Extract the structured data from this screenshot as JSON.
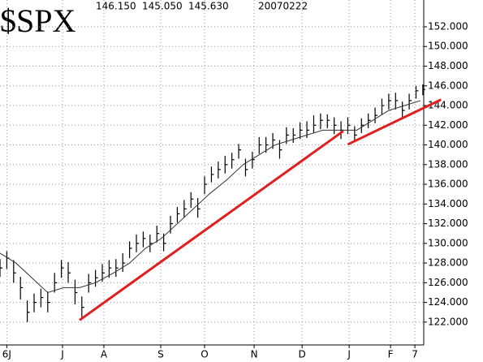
{
  "chart_data": {
    "type": "ohlc",
    "title": "$SPX",
    "quote": [
      "146.150",
      "145.050",
      "145.630"
    ],
    "date": "20070222",
    "x": [
      0,
      3,
      6,
      9,
      12,
      15,
      18,
      21,
      24,
      27,
      30,
      33,
      36,
      39,
      42,
      45,
      48,
      51,
      54,
      57,
      60,
      63,
      66,
      69,
      72,
      75,
      78,
      81,
      84,
      87,
      90,
      93,
      96,
      99,
      102,
      105,
      108,
      111,
      114,
      117,
      120,
      123,
      126,
      129,
      132,
      135,
      138,
      141,
      144,
      147,
      150,
      153,
      156,
      159,
      162,
      165,
      168,
      171,
      174,
      177,
      180,
      183,
      186
    ],
    "high": [
      128.4,
      129.2,
      128.3,
      126.6,
      124.2,
      124.9,
      125.4,
      125.1,
      127.0,
      128.3,
      128.1,
      126.3,
      124.6,
      126.9,
      127.3,
      127.9,
      128.3,
      128.4,
      129.0,
      130.2,
      130.9,
      131.2,
      130.9,
      131.8,
      131.0,
      132.8,
      133.7,
      134.4,
      135.2,
      134.6,
      136.8,
      137.8,
      138.3,
      138.9,
      139.2,
      140.1,
      138.6,
      139.3,
      140.8,
      140.8,
      141.2,
      140.5,
      141.8,
      141.7,
      142.3,
      142.4,
      143.0,
      143.2,
      143.1,
      142.8,
      142.4,
      142.8,
      141.9,
      142.7,
      143.2,
      143.8,
      144.7,
      145.2,
      145.3,
      144.4,
      145.2,
      146.0,
      146.15
    ],
    "low": [
      126.6,
      127.4,
      126.0,
      124.3,
      122.0,
      123.0,
      123.5,
      123.0,
      125.0,
      126.5,
      126.0,
      123.8,
      122.5,
      125.0,
      125.6,
      126.1,
      126.5,
      126.6,
      127.1,
      128.5,
      129.1,
      129.6,
      129.1,
      130.1,
      129.2,
      131.0,
      132.1,
      132.6,
      133.6,
      132.6,
      135.0,
      136.2,
      136.6,
      137.1,
      137.6,
      138.6,
      136.8,
      137.6,
      139.1,
      139.2,
      139.6,
      138.6,
      140.1,
      140.2,
      140.6,
      140.7,
      141.2,
      141.6,
      141.7,
      141.1,
      140.6,
      141.1,
      140.3,
      141.2,
      141.7,
      142.2,
      143.1,
      143.6,
      143.6,
      142.8,
      143.6,
      144.7,
      145.05
    ],
    "close": [
      127.5,
      128.5,
      127,
      125.5,
      123,
      124,
      124.5,
      124,
      126,
      127.5,
      127,
      125,
      123.5,
      126,
      126.5,
      127,
      127.5,
      127.5,
      128,
      129.5,
      130,
      130.5,
      130,
      131,
      130,
      132,
      133,
      133.5,
      134.5,
      133.5,
      136,
      137,
      137.5,
      138,
      138.5,
      139.5,
      137.5,
      138.5,
      140,
      140,
      140.5,
      139.5,
      141,
      141,
      141.5,
      141.5,
      142,
      142.5,
      142.5,
      142,
      141.5,
      142,
      141,
      142,
      142.5,
      143,
      144,
      144.5,
      144.5,
      143.5,
      144.5,
      145.5,
      145.63
    ],
    "bar_color": "#000000",
    "moving_average": {
      "color": "#333333",
      "x": [
        0,
        7,
        14,
        21,
        28,
        35,
        42,
        50,
        57,
        64,
        71,
        78,
        85,
        92,
        100,
        107,
        114,
        121,
        128,
        135,
        142,
        150,
        157,
        164,
        171,
        178,
        185
      ],
      "values": [
        129,
        128,
        126.5,
        125,
        125.5,
        125.5,
        126,
        127,
        128,
        129.5,
        130.5,
        132,
        133.5,
        135,
        136.5,
        138,
        139,
        140,
        140.5,
        141,
        141.5,
        141.5,
        141.5,
        142.5,
        143.5,
        144,
        144.5
      ]
    },
    "trendlines": [
      {
        "color": "#e02020",
        "x": [
          35,
          151
        ],
        "y": [
          122.2,
          141.4
        ]
      },
      {
        "color": "#e02020",
        "x": [
          153,
          194
        ],
        "y": [
          140.05,
          144.6
        ]
      }
    ],
    "xlim": [
      0,
      186.4
    ],
    "xticks": [
      {
        "value": 3,
        "label": "6J"
      },
      {
        "value": 27.5,
        "label": "J"
      },
      {
        "value": 45.7,
        "label": "A"
      },
      {
        "value": 70.7,
        "label": "S"
      },
      {
        "value": 90,
        "label": "O"
      },
      {
        "value": 111.8,
        "label": "N"
      },
      {
        "value": 132.9,
        "label": "D"
      },
      {
        "value": 153.6,
        "label": "J"
      },
      {
        "value": 171.8,
        "label": "F"
      },
      {
        "value": 182.5,
        "label": "7"
      }
    ],
    "ylim": [
      119.68,
      154.72
    ],
    "yticks": [
      {
        "value": 122,
        "label": "122.000"
      },
      {
        "value": 124,
        "label": "124.000"
      },
      {
        "value": 126,
        "label": "126.000"
      },
      {
        "value": 128,
        "label": "128.000"
      },
      {
        "value": 130,
        "label": "130.000"
      },
      {
        "value": 132,
        "label": "132.000"
      },
      {
        "value": 134,
        "label": "134.000"
      },
      {
        "value": 136,
        "label": "136.000"
      },
      {
        "value": 138,
        "label": "138.000"
      },
      {
        "value": 140,
        "label": "140.000"
      },
      {
        "value": 142,
        "label": "142.000"
      },
      {
        "value": 144,
        "label": "144.000"
      },
      {
        "value": 146,
        "label": "146.000"
      },
      {
        "value": 148,
        "label": "148.000"
      },
      {
        "value": 150,
        "label": "150.000"
      },
      {
        "value": 152,
        "label": "152.000"
      }
    ],
    "grid": true
  }
}
